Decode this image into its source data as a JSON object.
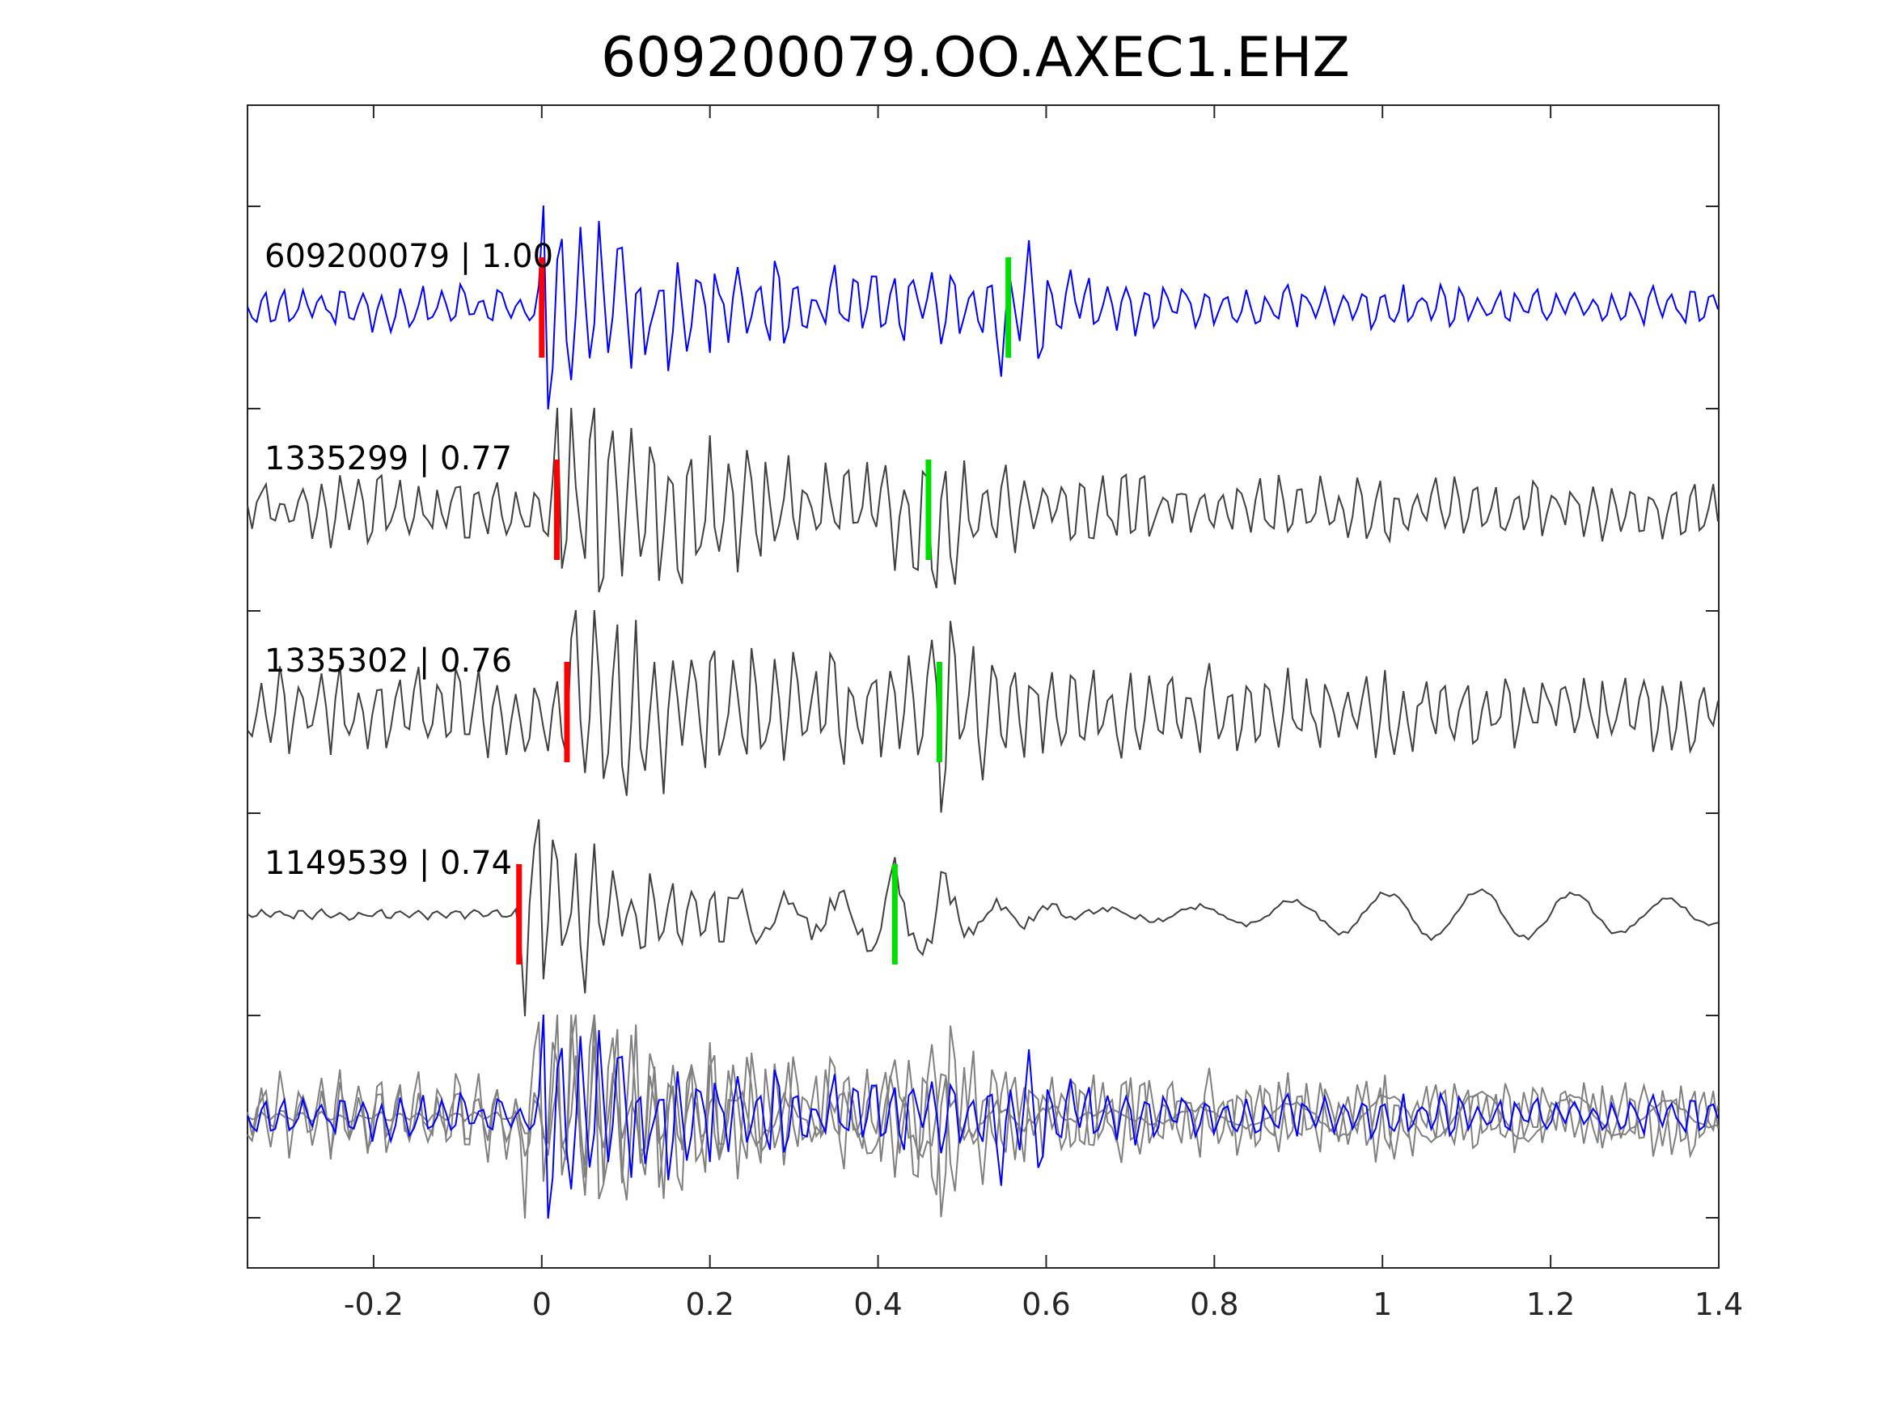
{
  "chart_data": {
    "type": "line",
    "title": "609200079.OO.AXEC1.EHZ",
    "xlabel": "",
    "ylabel": "",
    "xlim": [
      -0.35,
      1.4
    ],
    "x_ticks": [
      {
        "value": -0.2,
        "label": "-0.2"
      },
      {
        "value": 0,
        "label": "0"
      },
      {
        "value": 0.2,
        "label": "0.2"
      },
      {
        "value": 0.4,
        "label": "0.4"
      },
      {
        "value": 0.6,
        "label": "0.6"
      },
      {
        "value": 0.8,
        "label": "0.8"
      },
      {
        "value": 1,
        "label": "1"
      },
      {
        "value": 1.2,
        "label": "1.2"
      },
      {
        "value": 1.4,
        "label": "1.4"
      }
    ],
    "grid": false,
    "colors": {
      "template": "#0000ff",
      "match": "#404040",
      "stack": "#808080",
      "p_pick": "#ff0000",
      "s_pick": "#00dd00",
      "axes": "#262626"
    },
    "series": [
      {
        "label": "609200079 | 1.00",
        "role": "template",
        "p_pick": 0.0,
        "s_pick": 0.555
      },
      {
        "label": "1335299 | 0.77",
        "role": "match",
        "p_pick": 0.018,
        "s_pick": 0.46
      },
      {
        "label": "1335302 | 0.76",
        "role": "match",
        "p_pick": 0.03,
        "s_pick": 0.473
      },
      {
        "label": "1149539 | 0.74",
        "role": "match",
        "p_pick": -0.027,
        "s_pick": 0.42
      }
    ],
    "stack": {
      "role": "overlay"
    }
  }
}
